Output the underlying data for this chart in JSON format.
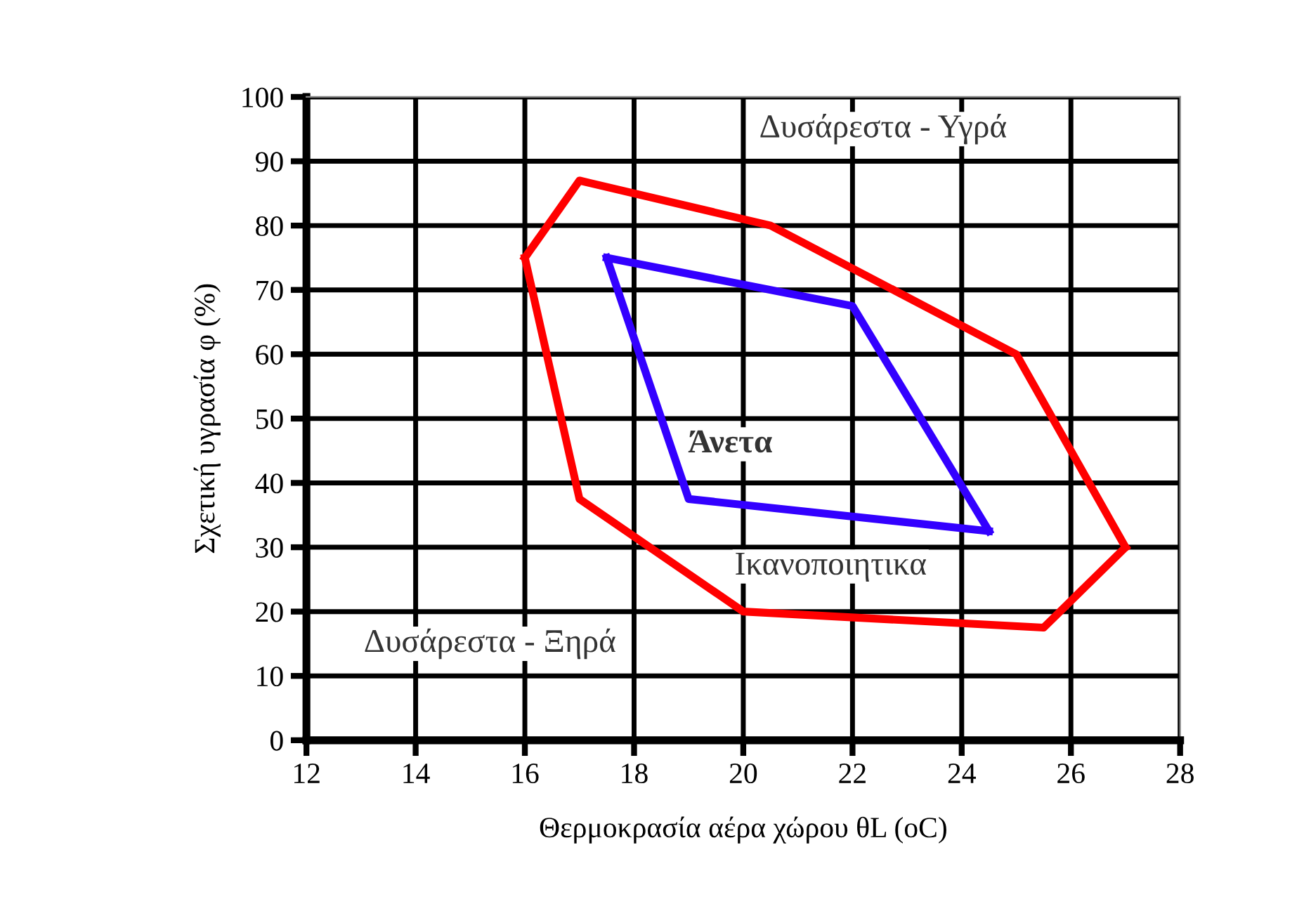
{
  "chart_data": {
    "type": "line",
    "xlabel": "Θερμοκρασία αέρα χώρου θL (oC)",
    "ylabel": "Σχετική υγρασία φ (%)",
    "xlim": [
      12,
      28
    ],
    "xticks": [
      12,
      14,
      16,
      18,
      20,
      22,
      24,
      26,
      28
    ],
    "ylim": [
      0,
      100
    ],
    "yticks": [
      0,
      10,
      20,
      30,
      40,
      50,
      60,
      70,
      80,
      90,
      100
    ],
    "grid": true,
    "marker": "none",
    "line_style": "solid",
    "series": [
      {
        "color": "#ff0000",
        "x": [
          16,
          17,
          20.5,
          25,
          27
        ],
        "values": [
          75,
          87,
          80,
          60,
          30
        ]
      },
      {
        "color": "#ff0000",
        "x": [
          16,
          17,
          20,
          25.5,
          27
        ],
        "values": [
          75,
          37.5,
          20,
          17.5,
          30
        ]
      },
      {
        "color": "#3300ff",
        "x": [
          17.5,
          22,
          24.5
        ],
        "values": [
          75,
          67.5,
          32.5
        ]
      },
      {
        "color": "#3300ff",
        "x": [
          17.5,
          19,
          24.5
        ],
        "values": [
          75,
          37.5,
          32.5
        ]
      }
    ],
    "annotations": [
      "Δυσάρεστα - Υγρά",
      "Άνετα",
      "Ικανοποιητικα",
      "Δυσάρεστα - Ξηρά"
    ]
  }
}
